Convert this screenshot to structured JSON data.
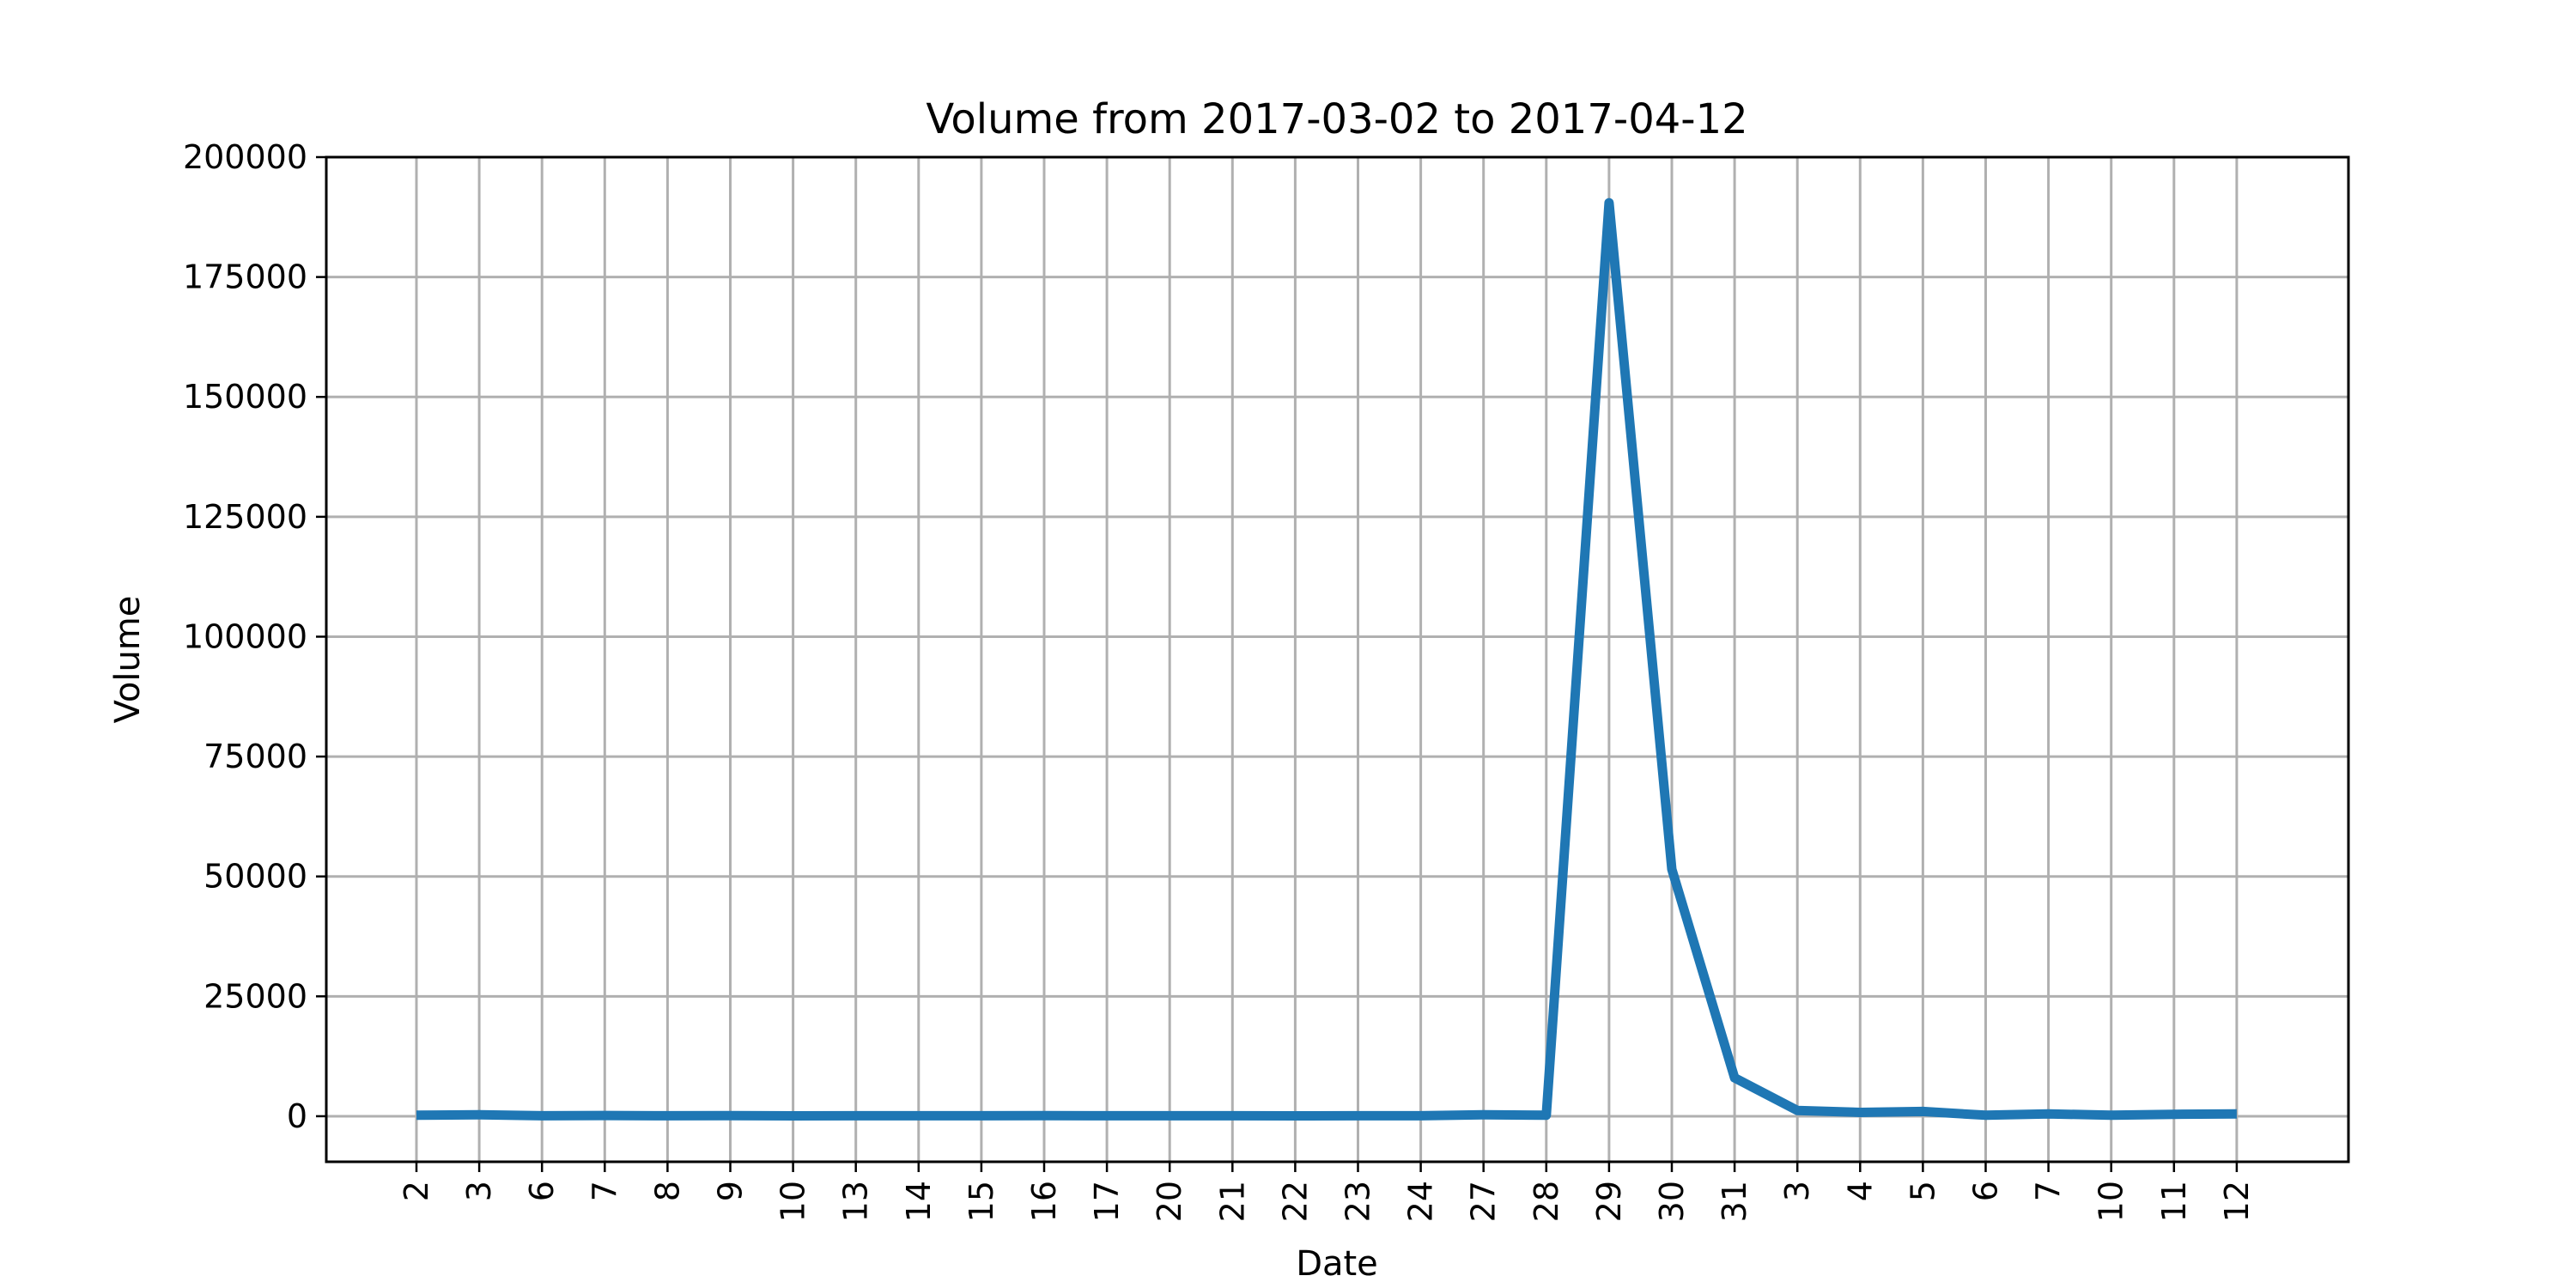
{
  "chart_data": {
    "type": "line",
    "title": "Volume from 2017-03-02 to 2017-04-12",
    "xlabel": "Date",
    "ylabel": "Volume",
    "x": [
      "2017-03-02",
      "2017-03-03",
      "2017-03-06",
      "2017-03-07",
      "2017-03-08",
      "2017-03-09",
      "2017-03-10",
      "2017-03-13",
      "2017-03-14",
      "2017-03-15",
      "2017-03-16",
      "2017-03-17",
      "2017-03-20",
      "2017-03-21",
      "2017-03-22",
      "2017-03-23",
      "2017-03-24",
      "2017-03-27",
      "2017-03-28",
      "2017-03-29",
      "2017-03-30",
      "2017-03-31",
      "2017-04-03",
      "2017-04-04",
      "2017-04-05",
      "2017-04-06",
      "2017-04-07",
      "2017-04-10",
      "2017-04-11",
      "2017-04-12"
    ],
    "tick_labels": [
      "2",
      "3",
      "6",
      "7",
      "8",
      "9",
      "10",
      "13",
      "14",
      "15",
      "16",
      "17",
      "20",
      "21",
      "22",
      "23",
      "24",
      "27",
      "28",
      "29",
      "30",
      "31",
      "3",
      "4",
      "5",
      "6",
      "7",
      "10",
      "11",
      "12"
    ],
    "series": [
      {
        "color": "#1f77b4",
        "values": [
          200,
          300,
          100,
          150,
          100,
          120,
          80,
          100,
          90,
          100,
          110,
          100,
          90,
          100,
          80,
          90,
          100,
          300,
          200,
          190500,
          51500,
          8000,
          1200,
          800,
          1000,
          200,
          500,
          200,
          400,
          500
        ]
      }
    ],
    "yticks": [
      0,
      25000,
      50000,
      75000,
      100000,
      125000,
      150000,
      175000,
      200000
    ],
    "ylim": [
      -9500,
      200000
    ],
    "grid": true
  }
}
